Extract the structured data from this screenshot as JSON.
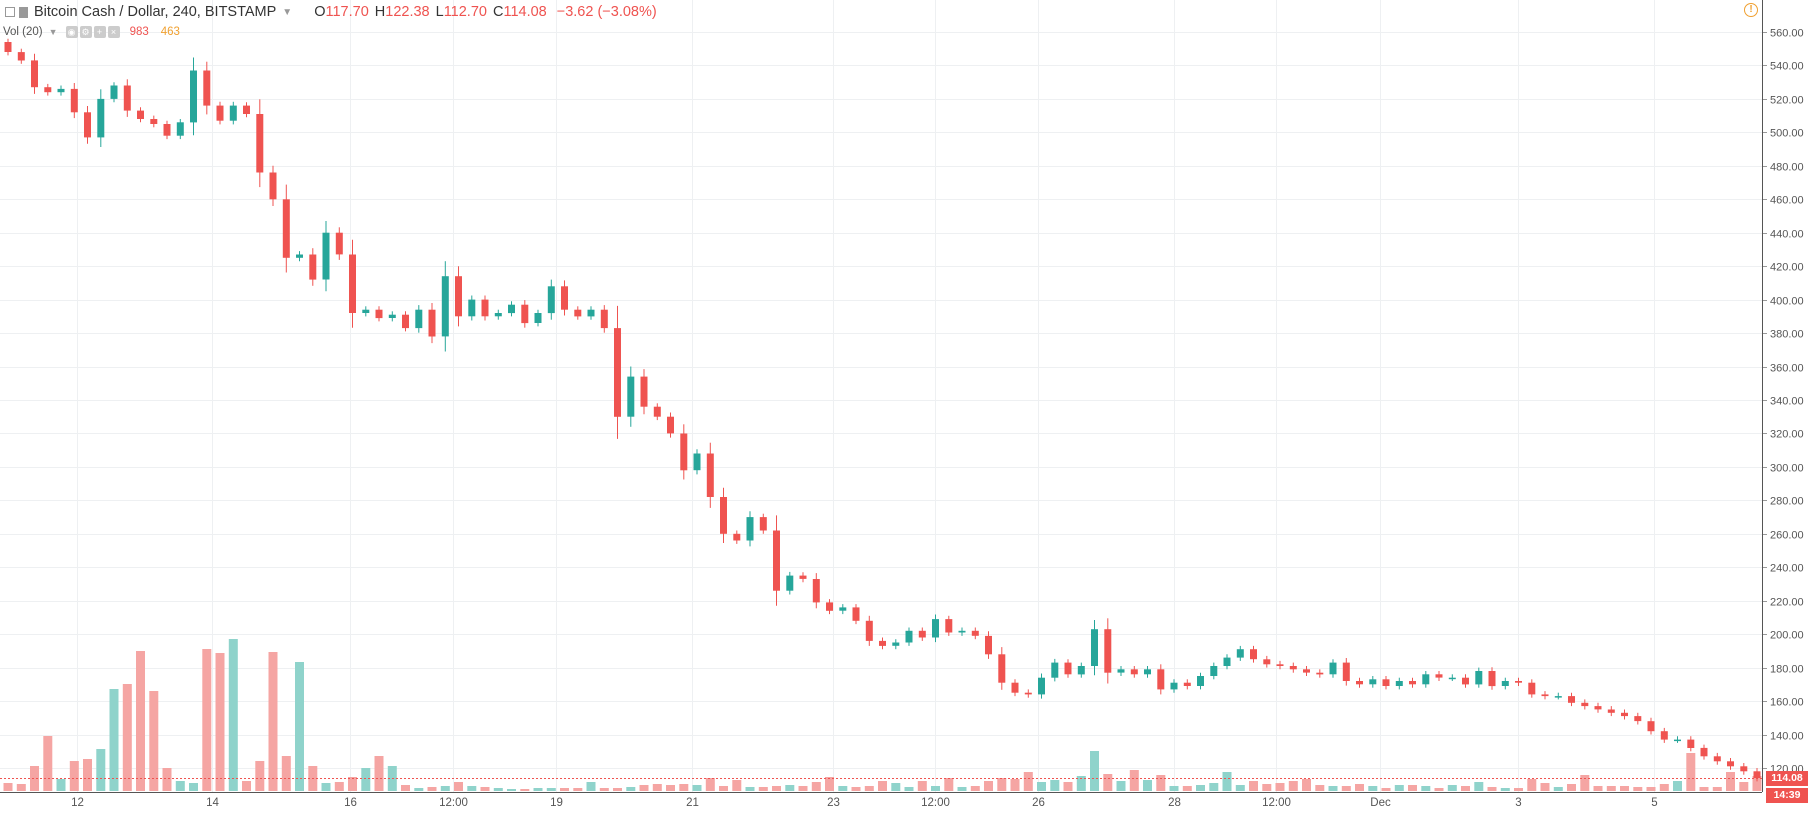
{
  "header": {
    "symbol": "Bitcoin Cash / Dollar, 240, BITSTAMP",
    "open_key": "O",
    "open": "117.70",
    "high_key": "H",
    "high": "122.38",
    "low_key": "L",
    "low": "112.70",
    "close_key": "C",
    "close": "114.08",
    "change": "−3.62 (−3.08%)"
  },
  "volume_legend": {
    "label": "Vol (20)",
    "value1": "983",
    "value2": "463"
  },
  "price_tag": "114.08",
  "time_tag": "14:39",
  "colors": {
    "up": "#26a69a",
    "down": "#ef5350",
    "up_vol": "#8fd3cb",
    "down_vol": "#f5a5a3",
    "grid": "#eef0f2"
  },
  "chart_data": {
    "type": "candlestick",
    "price_axis": {
      "ticks": [
        "560.00",
        "540.00",
        "520.00",
        "500.00",
        "480.00",
        "460.00",
        "440.00",
        "420.00",
        "400.00",
        "380.00",
        "360.00",
        "340.00",
        "320.00",
        "300.00",
        "280.00",
        "260.00",
        "240.00",
        "220.00",
        "200.00",
        "180.00",
        "160.00",
        "140.00",
        "120.00"
      ]
    },
    "time_axis": {
      "labels": [
        "12",
        "14",
        "16",
        "12:00",
        "19",
        "21",
        "23",
        "12:00",
        "26",
        "28",
        "12:00",
        "Dec",
        "3",
        "5"
      ]
    },
    "last_price": 114.08,
    "close": [
      548,
      543,
      527,
      524,
      526,
      512,
      497,
      520,
      528,
      513,
      508,
      505,
      498,
      506,
      537,
      516,
      507,
      516,
      511,
      476,
      460,
      425,
      427,
      412,
      440,
      427,
      392,
      394,
      389,
      391,
      383,
      394,
      378,
      414,
      390,
      400,
      390,
      392,
      397,
      386,
      392,
      408,
      394,
      390,
      394,
      383,
      330,
      354,
      336,
      330,
      320,
      298,
      308,
      282,
      260,
      256,
      270,
      262,
      226,
      235,
      233,
      219,
      214,
      216,
      208,
      196,
      193,
      195,
      202,
      198,
      209,
      201,
      202,
      199,
      188,
      171,
      165,
      164,
      174,
      183,
      176,
      181,
      203,
      177,
      179,
      176,
      179,
      167,
      171,
      169,
      175,
      181,
      186,
      191,
      185,
      182,
      181,
      179,
      177,
      176,
      183,
      172,
      170,
      173,
      169,
      172,
      170,
      176,
      174,
      174,
      170,
      178,
      169,
      172,
      171,
      164,
      163,
      163,
      159,
      157,
      155,
      153,
      151,
      148,
      142,
      137,
      137,
      132,
      127,
      124,
      121,
      118,
      114
    ],
    "volume": [
      8,
      7,
      25,
      55,
      12,
      30,
      32,
      42,
      102,
      107,
      140,
      100,
      23,
      10,
      8,
      142,
      138,
      152,
      10,
      30,
      139,
      35,
      129,
      25,
      8,
      9,
      14,
      23,
      35,
      25,
      6,
      3,
      4,
      5,
      9,
      5,
      4,
      3,
      2,
      2,
      3,
      3,
      3,
      3,
      9,
      3,
      3,
      4,
      6,
      7,
      6,
      7,
      6,
      13,
      5,
      11,
      4,
      4,
      5,
      6,
      5,
      9,
      14,
      5,
      4,
      5,
      10,
      8,
      4,
      10,
      5,
      13,
      4,
      5,
      10,
      13,
      12,
      19,
      9,
      11,
      9,
      15,
      40,
      17,
      10,
      21,
      11,
      16,
      5,
      5,
      6,
      8,
      19,
      6,
      10,
      7,
      8,
      10,
      12,
      6,
      5,
      5,
      7,
      5,
      3,
      6,
      6,
      5,
      3,
      6,
      5,
      9,
      4,
      3,
      3,
      12,
      8,
      4,
      7,
      16,
      5,
      5,
      5,
      4,
      4,
      7,
      10,
      38,
      4,
      4,
      19,
      9,
      15
    ]
  }
}
